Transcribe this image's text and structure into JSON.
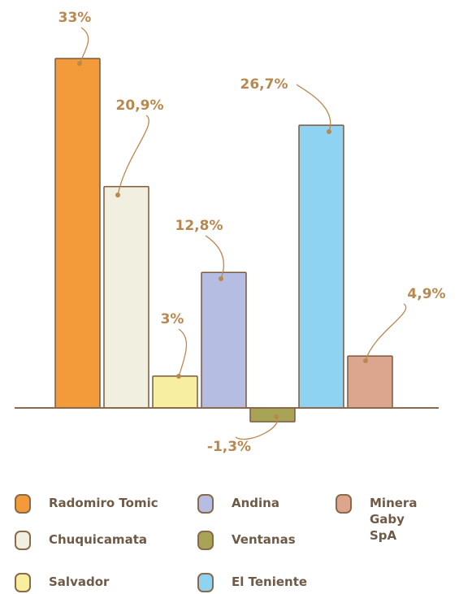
{
  "chart_data": {
    "type": "bar",
    "categories": [
      "Radomiro Tomic",
      "Chuquicamata",
      "Salvador",
      "Andina",
      "Ventanas",
      "El Teniente",
      "Minera Gaby SpA"
    ],
    "values": [
      33,
      20.9,
      3,
      12.8,
      -1.3,
      26.7,
      4.9
    ],
    "value_labels": [
      "33%",
      "20,9%",
      "3%",
      "12,8%",
      "-1,3%",
      "26,7%",
      "4,9%"
    ],
    "colors": [
      "#f39a3a",
      "#f1efdf",
      "#f7eea0",
      "#b5bde3",
      "#a7a555",
      "#8fd3f3",
      "#dba58e"
    ]
  }
}
